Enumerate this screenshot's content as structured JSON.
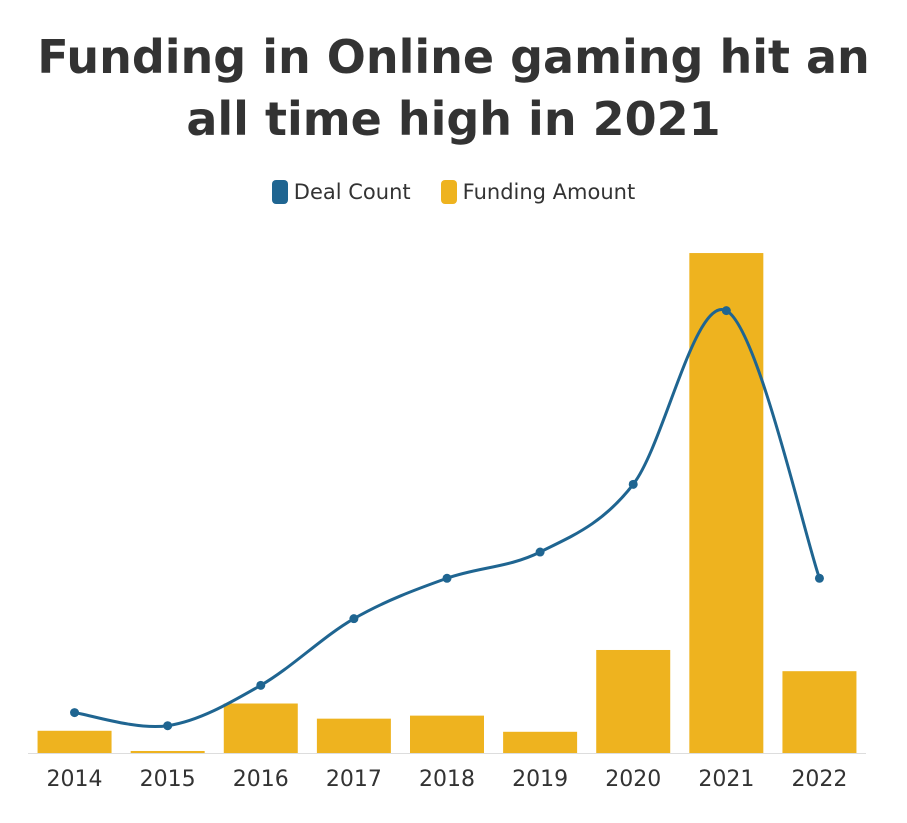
{
  "chart_data": {
    "type": "bar",
    "title": "Funding in Online gaming hit an all time high in 2021",
    "categories": [
      "2014",
      "2015",
      "2016",
      "2017",
      "2018",
      "2019",
      "2020",
      "2021",
      "2022"
    ],
    "series": [
      {
        "name": "Funding Amount",
        "kind": "bar",
        "axis": "left",
        "values": [
          22,
          2,
          49,
          34,
          37,
          21,
          102,
          495,
          81
        ]
      },
      {
        "name": "Deal Count",
        "kind": "line",
        "smooth": true,
        "axis": "right",
        "values": [
          40,
          27,
          67,
          133,
          173,
          199,
          266,
          438,
          173
        ]
      }
    ],
    "ylim_bars": [
      0,
      500
    ],
    "ylim_line": [
      0,
      500
    ],
    "xlabel": "",
    "ylabel": "",
    "grid": false,
    "legend_position": "top-center",
    "colors": {
      "Deal Count": "#1f6591",
      "Funding Amount": "#eeb31f"
    }
  }
}
